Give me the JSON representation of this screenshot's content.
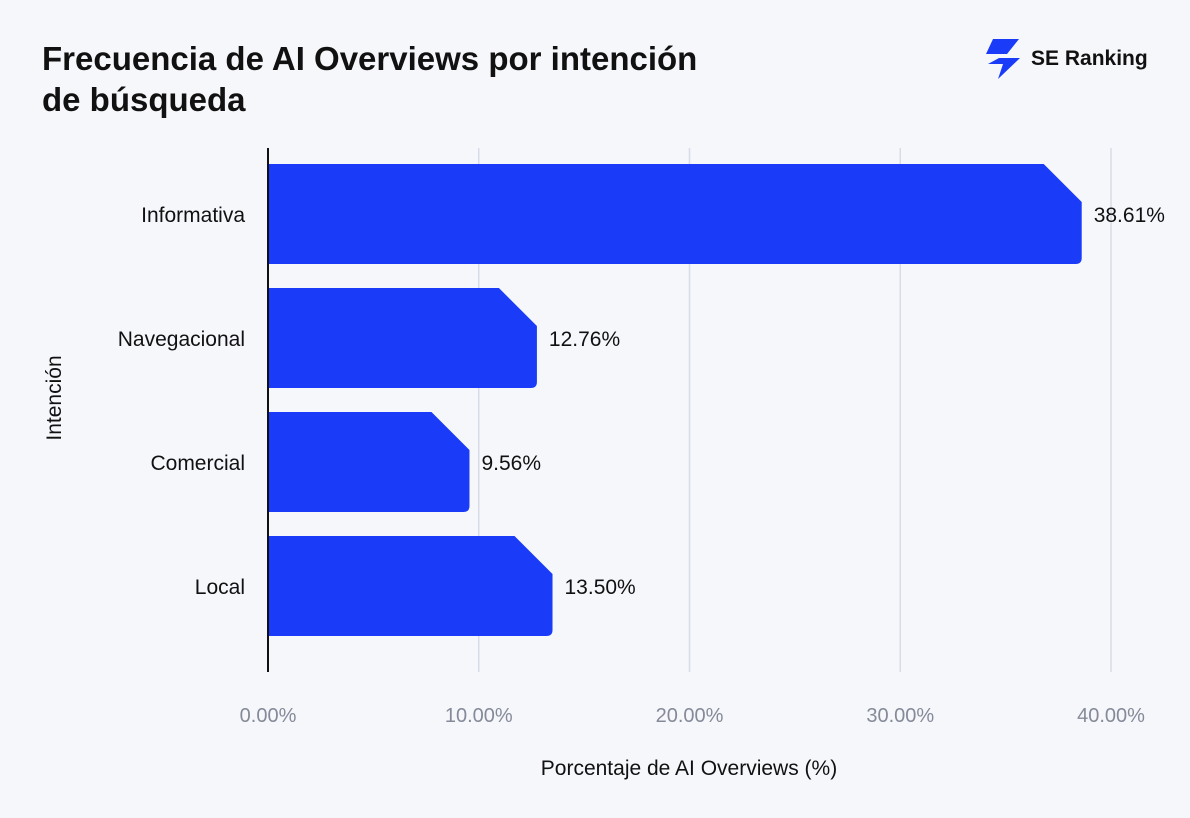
{
  "title_line1": "Frecuencia de AI Overviews por intención",
  "title_line2": "de búsqueda",
  "brand": {
    "name": "SE Ranking",
    "logo_icon": "se-ranking-bolt-icon",
    "logo_color": "#1a3cf8"
  },
  "chart_data": {
    "type": "bar",
    "orientation": "horizontal",
    "categories": [
      "Informativa",
      "Navegacional",
      "Comercial",
      "Local"
    ],
    "values": [
      38.61,
      12.76,
      9.56,
      13.5
    ],
    "value_labels": [
      "38.61%",
      "12.76%",
      "9.56%",
      "13.50%"
    ],
    "xlabel": "Porcentaje de AI Overviews (%)",
    "ylabel": "Intención",
    "xlim": [
      0,
      40
    ],
    "x_ticks": [
      0,
      10,
      20,
      30,
      40
    ],
    "x_tick_labels": [
      "0.00%",
      "10.00%",
      "20.00%",
      "30.00%",
      "40.00%"
    ],
    "grid": "vertical",
    "bar_color": "#1a3cf8"
  }
}
